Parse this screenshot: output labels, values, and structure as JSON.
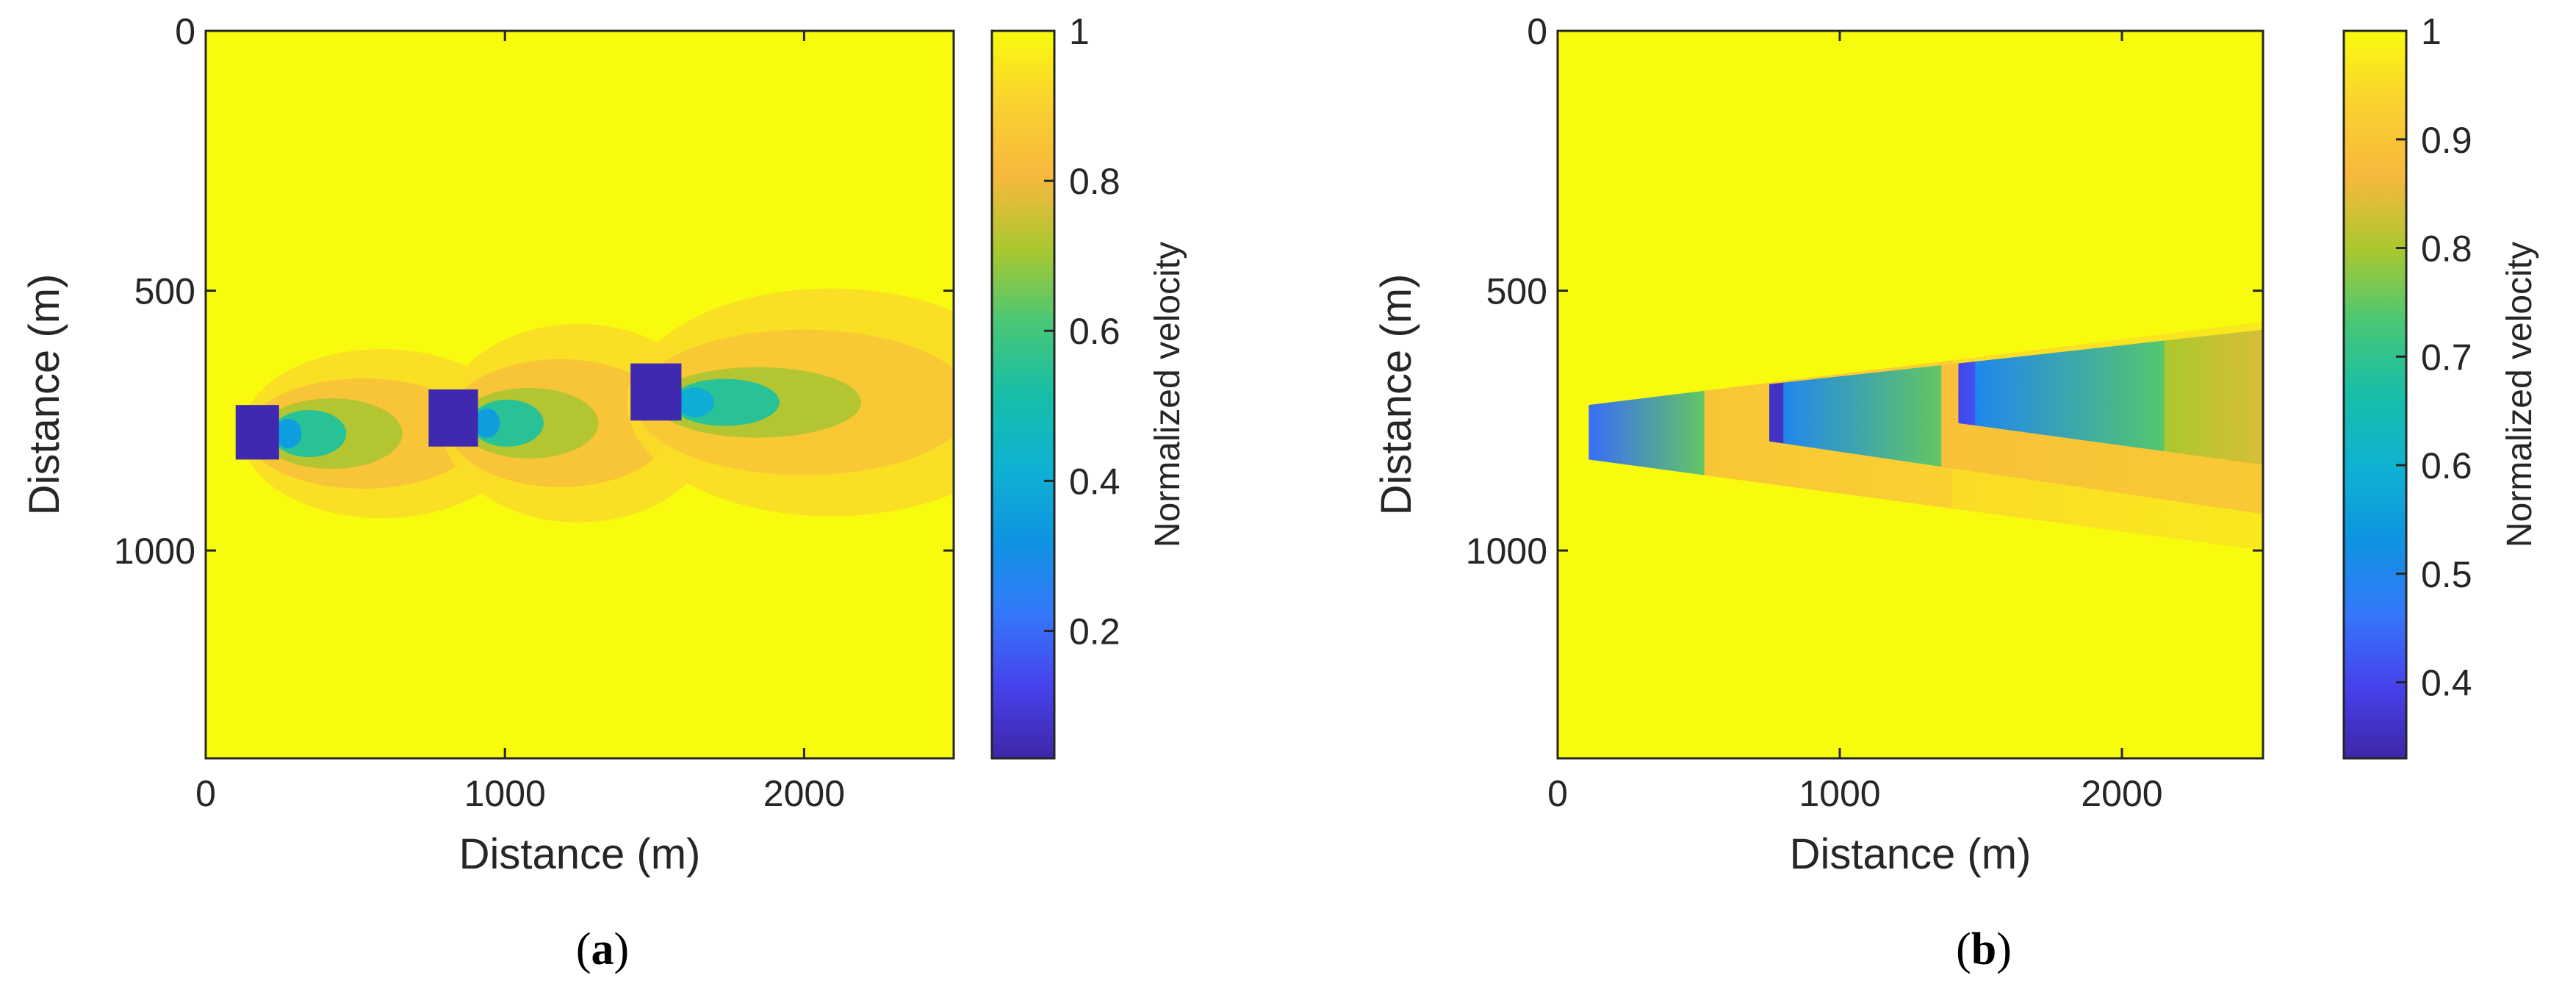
{
  "figure": {
    "colormap": "parula",
    "background_color": "#f9fb0e",
    "low_color": "#3e26a8"
  },
  "chart_data": [
    {
      "type": "heatmap",
      "panel_label": "a",
      "panel_label_prefix": "(",
      "panel_label_suffix": ")",
      "title": "",
      "xlabel": "Distance (m)",
      "ylabel": "Distance (m)",
      "xlim": [
        0,
        2500
      ],
      "ylim": [
        1400,
        0
      ],
      "xticks": [
        0,
        1000,
        2000
      ],
      "yticks": [
        0,
        500,
        1000
      ],
      "colorbar": {
        "label": "Normalized velocity",
        "range": [
          0.03,
          1.0
        ],
        "ticks": [
          0.2,
          0.4,
          0.6,
          0.8,
          1
        ],
        "tick_labels": [
          "0.2",
          "0.4",
          "0.6",
          "0.8",
          "1"
        ]
      },
      "background_value": 1.0,
      "turbines": [
        {
          "x_start": 100,
          "x_end": 245,
          "y_top": 720,
          "y_bottom": 825,
          "value": 0.04
        },
        {
          "x_start": 745,
          "x_end": 910,
          "y_top": 690,
          "y_bottom": 800,
          "value": 0.04
        },
        {
          "x_start": 1420,
          "x_end": 1590,
          "y_top": 640,
          "y_bottom": 750,
          "value": 0.04
        }
      ],
      "wakes": [
        {
          "x_start": 245,
          "x_end": 870,
          "y_center": 775,
          "center_value": 0.35,
          "far_value": 0.85,
          "edge_value": 0.9
        },
        {
          "x_start": 910,
          "x_end": 1520,
          "y_center": 755,
          "center_value": 0.35,
          "far_value": 0.85,
          "edge_value": 0.9
        },
        {
          "x_start": 1590,
          "x_end": 2500,
          "y_center": 715,
          "center_value": 0.4,
          "far_value": 0.87,
          "edge_value": 0.9
        }
      ]
    },
    {
      "type": "heatmap",
      "panel_label": "b",
      "panel_label_prefix": "(",
      "panel_label_suffix": ")",
      "title": "",
      "xlabel": "Distance (m)",
      "ylabel": "Distance (m)",
      "xlim": [
        0,
        2500
      ],
      "ylim": [
        1400,
        0
      ],
      "xticks": [
        0,
        1000,
        2000
      ],
      "yticks": [
        0,
        500,
        1000
      ],
      "colorbar": {
        "label": "Normalized velocity",
        "range": [
          0.33,
          1.0
        ],
        "ticks": [
          0.4,
          0.5,
          0.6,
          0.7,
          0.8,
          0.9,
          1
        ],
        "tick_labels": [
          "0.4",
          "0.5",
          "0.6",
          "0.7",
          "0.8",
          "0.9",
          "1"
        ]
      },
      "background_value": 1.0,
      "wake_zones": [
        {
          "polygon": [
            [
              110,
              720
            ],
            [
              2500,
              560
            ],
            [
              2500,
              1000
            ],
            [
              110,
              825
            ]
          ],
          "segments": [
            {
              "x_start": 110,
              "x_end": 520,
              "value_start": 0.45,
              "value_end": 0.75
            },
            {
              "x_start": 520,
              "x_end": 1400,
              "value_start": 0.9,
              "value_end": 0.93
            },
            {
              "x_start": 1400,
              "x_end": 2500,
              "value_start": 0.95,
              "value_end": 0.97
            }
          ]
        },
        {
          "polygon": [
            [
              750,
              680
            ],
            [
              2500,
              575
            ],
            [
              2500,
              930
            ],
            [
              750,
              790
            ]
          ],
          "segments": [
            {
              "x_start": 750,
              "x_end": 800,
              "value_start": 0.36,
              "value_end": 0.36
            },
            {
              "x_start": 800,
              "x_end": 1360,
              "value_start": 0.5,
              "value_end": 0.75
            },
            {
              "x_start": 1360,
              "x_end": 2500,
              "value_start": 0.89,
              "value_end": 0.91
            }
          ]
        },
        {
          "polygon": [
            [
              1420,
              640
            ],
            [
              2500,
              575
            ],
            [
              2500,
              835
            ],
            [
              1420,
              755
            ]
          ],
          "segments": [
            {
              "x_start": 1420,
              "x_end": 1480,
              "value_start": 0.4,
              "value_end": 0.42
            },
            {
              "x_start": 1480,
              "x_end": 2150,
              "value_start": 0.5,
              "value_end": 0.74
            },
            {
              "x_start": 2150,
              "x_end": 2500,
              "value_start": 0.8,
              "value_end": 0.84
            }
          ]
        }
      ]
    }
  ]
}
